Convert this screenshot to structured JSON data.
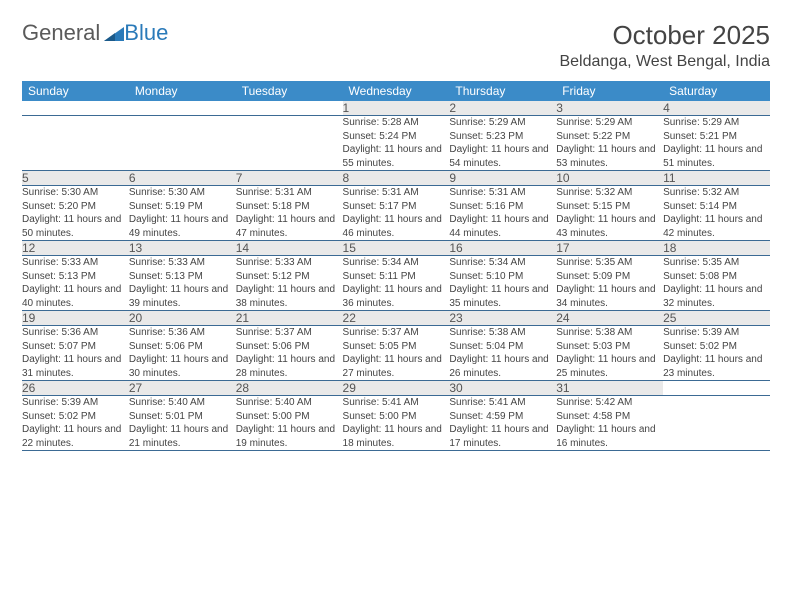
{
  "logo": {
    "text1": "General",
    "text2": "Blue"
  },
  "header": {
    "month": "October 2025",
    "location": "Beldanga, West Bengal, India"
  },
  "colors": {
    "header_bg": "#3b8bc8",
    "header_text": "#ffffff",
    "daynum_bg": "#e9e9e9",
    "row_border": "#3b6a94",
    "logo_accent": "#2a7ab9"
  },
  "weekdays": [
    "Sunday",
    "Monday",
    "Tuesday",
    "Wednesday",
    "Thursday",
    "Friday",
    "Saturday"
  ],
  "weeks": [
    [
      null,
      null,
      null,
      {
        "n": "1",
        "sr": "5:28 AM",
        "ss": "5:24 PM",
        "dl": "Daylight: 11 hours and 55 minutes."
      },
      {
        "n": "2",
        "sr": "5:29 AM",
        "ss": "5:23 PM",
        "dl": "Daylight: 11 hours and 54 minutes."
      },
      {
        "n": "3",
        "sr": "5:29 AM",
        "ss": "5:22 PM",
        "dl": "Daylight: 11 hours and 53 minutes."
      },
      {
        "n": "4",
        "sr": "5:29 AM",
        "ss": "5:21 PM",
        "dl": "Daylight: 11 hours and 51 minutes."
      }
    ],
    [
      {
        "n": "5",
        "sr": "5:30 AM",
        "ss": "5:20 PM",
        "dl": "Daylight: 11 hours and 50 minutes."
      },
      {
        "n": "6",
        "sr": "5:30 AM",
        "ss": "5:19 PM",
        "dl": "Daylight: 11 hours and 49 minutes."
      },
      {
        "n": "7",
        "sr": "5:31 AM",
        "ss": "5:18 PM",
        "dl": "Daylight: 11 hours and 47 minutes."
      },
      {
        "n": "8",
        "sr": "5:31 AM",
        "ss": "5:17 PM",
        "dl": "Daylight: 11 hours and 46 minutes."
      },
      {
        "n": "9",
        "sr": "5:31 AM",
        "ss": "5:16 PM",
        "dl": "Daylight: 11 hours and 44 minutes."
      },
      {
        "n": "10",
        "sr": "5:32 AM",
        "ss": "5:15 PM",
        "dl": "Daylight: 11 hours and 43 minutes."
      },
      {
        "n": "11",
        "sr": "5:32 AM",
        "ss": "5:14 PM",
        "dl": "Daylight: 11 hours and 42 minutes."
      }
    ],
    [
      {
        "n": "12",
        "sr": "5:33 AM",
        "ss": "5:13 PM",
        "dl": "Daylight: 11 hours and 40 minutes."
      },
      {
        "n": "13",
        "sr": "5:33 AM",
        "ss": "5:13 PM",
        "dl": "Daylight: 11 hours and 39 minutes."
      },
      {
        "n": "14",
        "sr": "5:33 AM",
        "ss": "5:12 PM",
        "dl": "Daylight: 11 hours and 38 minutes."
      },
      {
        "n": "15",
        "sr": "5:34 AM",
        "ss": "5:11 PM",
        "dl": "Daylight: 11 hours and 36 minutes."
      },
      {
        "n": "16",
        "sr": "5:34 AM",
        "ss": "5:10 PM",
        "dl": "Daylight: 11 hours and 35 minutes."
      },
      {
        "n": "17",
        "sr": "5:35 AM",
        "ss": "5:09 PM",
        "dl": "Daylight: 11 hours and 34 minutes."
      },
      {
        "n": "18",
        "sr": "5:35 AM",
        "ss": "5:08 PM",
        "dl": "Daylight: 11 hours and 32 minutes."
      }
    ],
    [
      {
        "n": "19",
        "sr": "5:36 AM",
        "ss": "5:07 PM",
        "dl": "Daylight: 11 hours and 31 minutes."
      },
      {
        "n": "20",
        "sr": "5:36 AM",
        "ss": "5:06 PM",
        "dl": "Daylight: 11 hours and 30 minutes."
      },
      {
        "n": "21",
        "sr": "5:37 AM",
        "ss": "5:06 PM",
        "dl": "Daylight: 11 hours and 28 minutes."
      },
      {
        "n": "22",
        "sr": "5:37 AM",
        "ss": "5:05 PM",
        "dl": "Daylight: 11 hours and 27 minutes."
      },
      {
        "n": "23",
        "sr": "5:38 AM",
        "ss": "5:04 PM",
        "dl": "Daylight: 11 hours and 26 minutes."
      },
      {
        "n": "24",
        "sr": "5:38 AM",
        "ss": "5:03 PM",
        "dl": "Daylight: 11 hours and 25 minutes."
      },
      {
        "n": "25",
        "sr": "5:39 AM",
        "ss": "5:02 PM",
        "dl": "Daylight: 11 hours and 23 minutes."
      }
    ],
    [
      {
        "n": "26",
        "sr": "5:39 AM",
        "ss": "5:02 PM",
        "dl": "Daylight: 11 hours and 22 minutes."
      },
      {
        "n": "27",
        "sr": "5:40 AM",
        "ss": "5:01 PM",
        "dl": "Daylight: 11 hours and 21 minutes."
      },
      {
        "n": "28",
        "sr": "5:40 AM",
        "ss": "5:00 PM",
        "dl": "Daylight: 11 hours and 19 minutes."
      },
      {
        "n": "29",
        "sr": "5:41 AM",
        "ss": "5:00 PM",
        "dl": "Daylight: 11 hours and 18 minutes."
      },
      {
        "n": "30",
        "sr": "5:41 AM",
        "ss": "4:59 PM",
        "dl": "Daylight: 11 hours and 17 minutes."
      },
      {
        "n": "31",
        "sr": "5:42 AM",
        "ss": "4:58 PM",
        "dl": "Daylight: 11 hours and 16 minutes."
      },
      null
    ]
  ],
  "labels": {
    "sunrise": "Sunrise: ",
    "sunset": "Sunset: "
  }
}
